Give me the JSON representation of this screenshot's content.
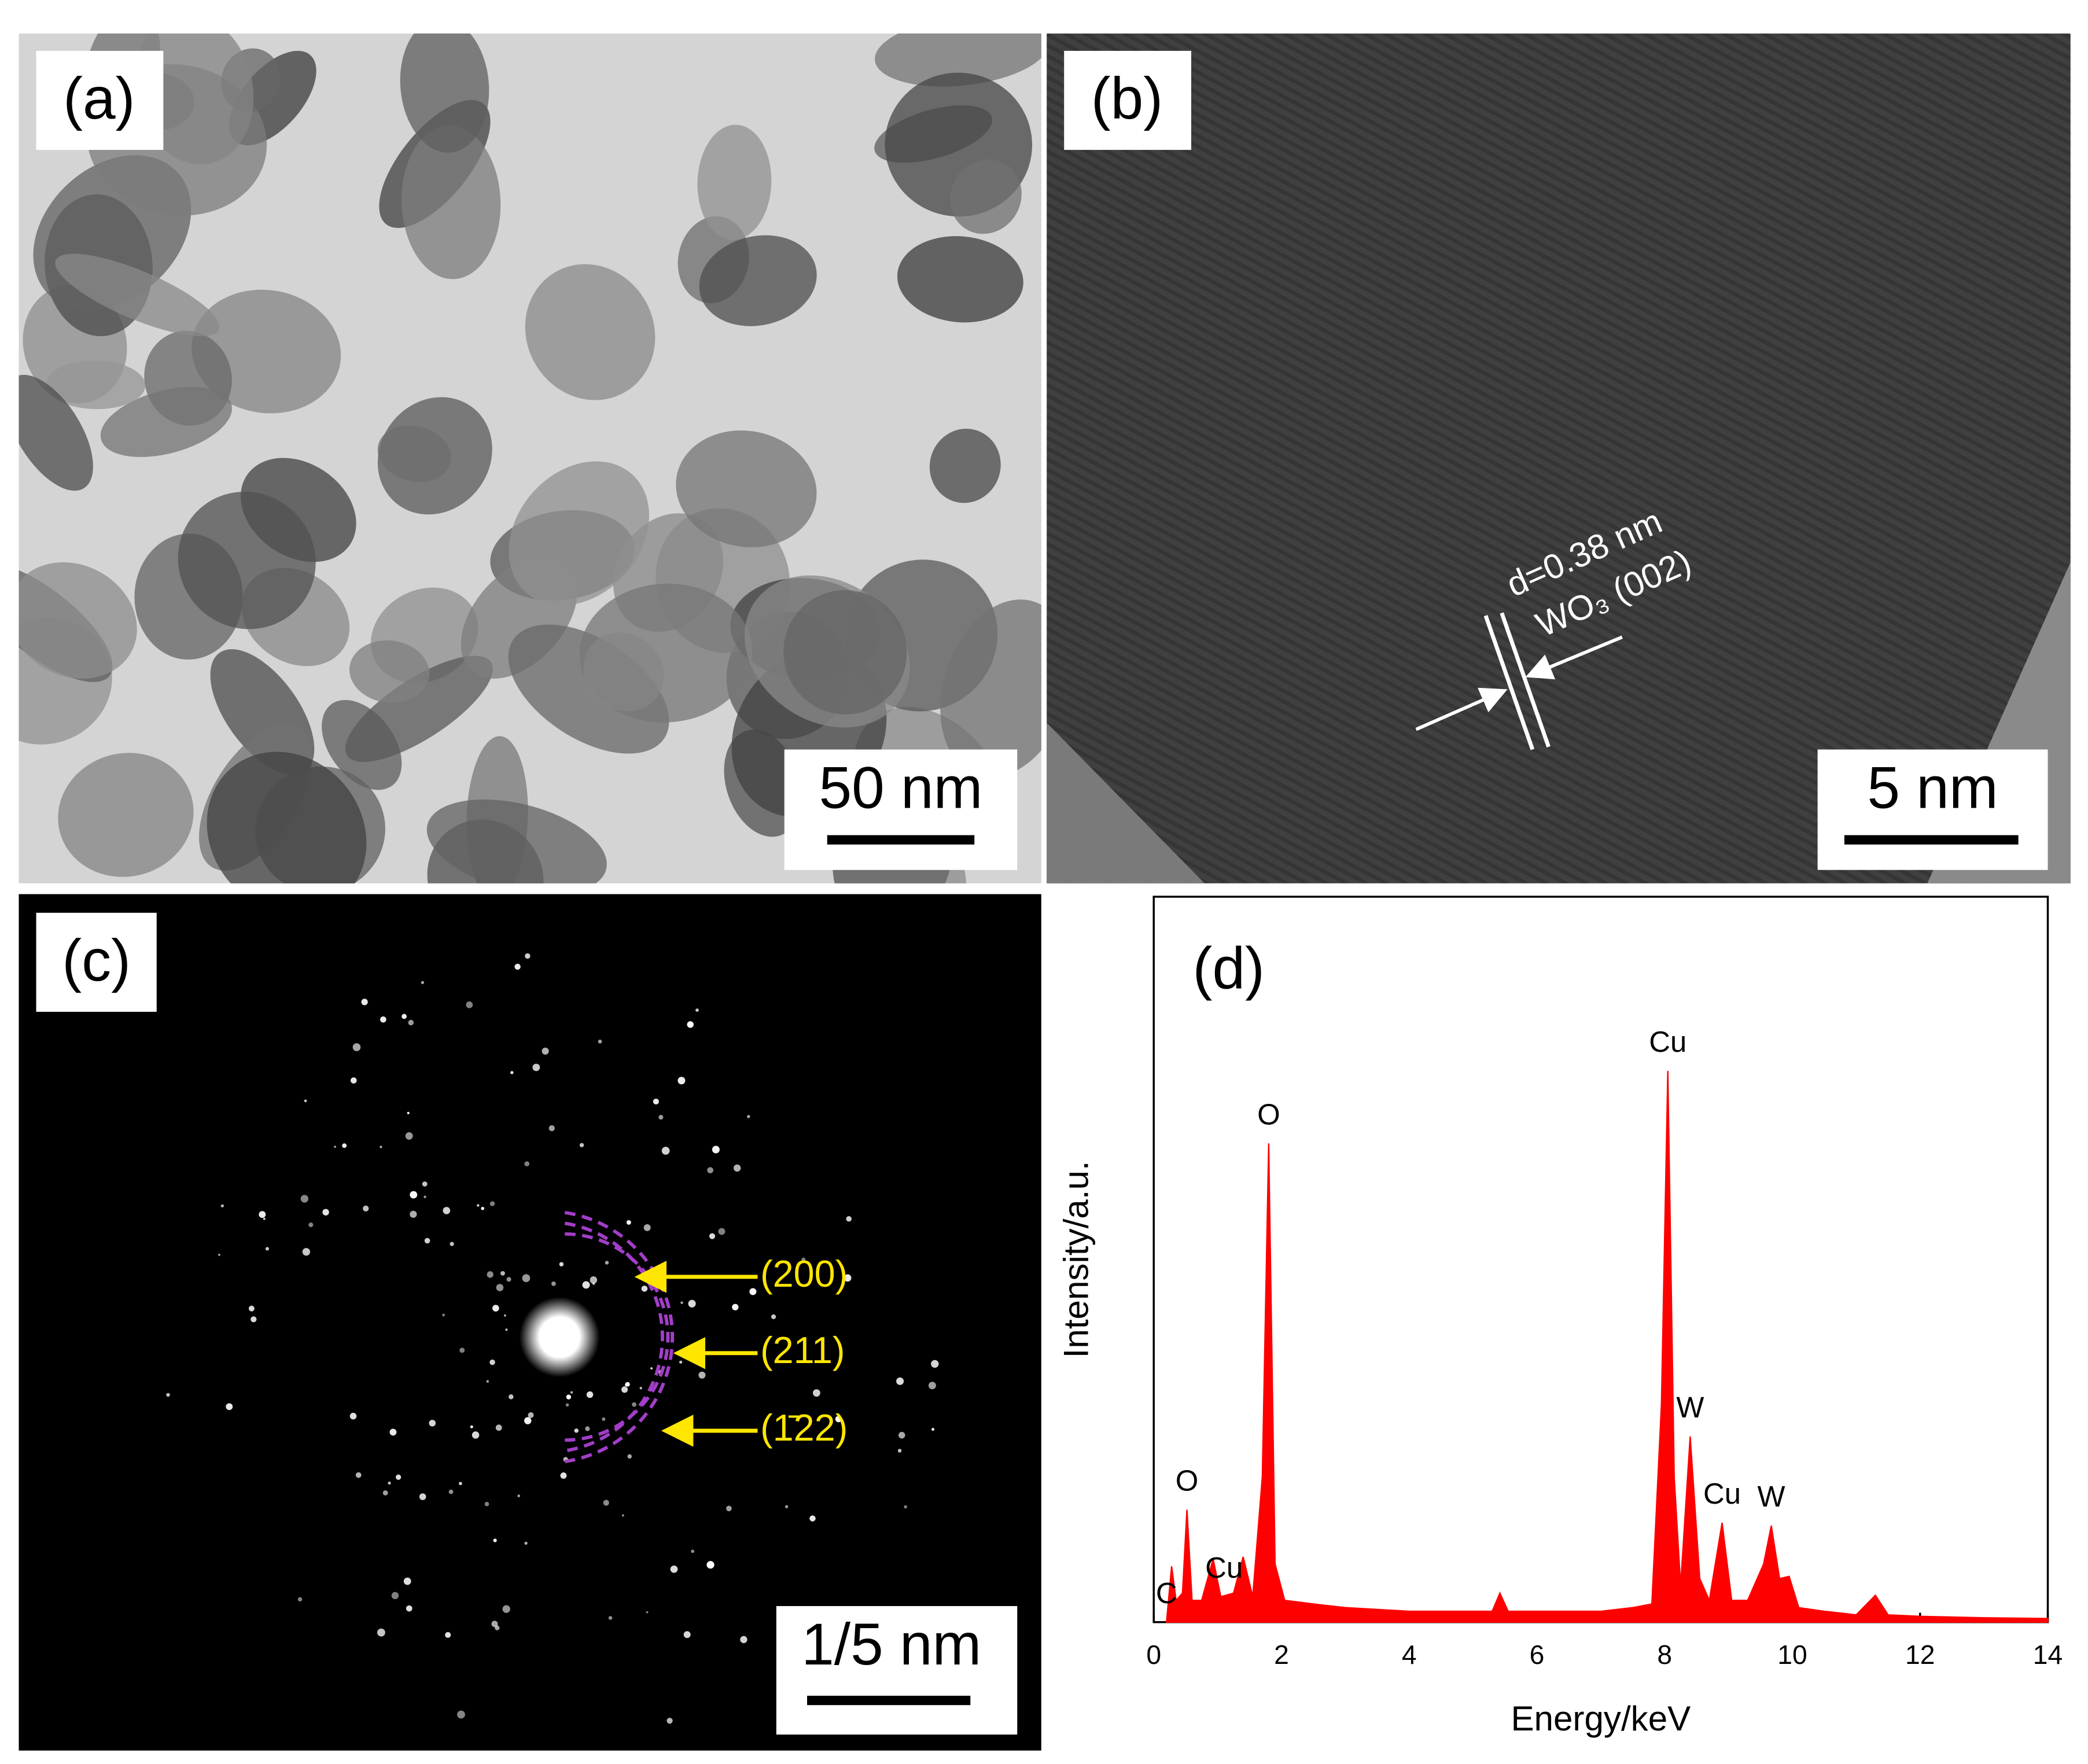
{
  "panels": {
    "a": {
      "label": "(a)",
      "scale_bar": "50 nm"
    },
    "b": {
      "label": "(b)",
      "scale_bar": "5 nm",
      "spacing": "d=0.38 nm",
      "plane": "WO₃ (002)"
    },
    "c": {
      "label": "(c)",
      "scale_bar": "1/5 nm",
      "rings": [
        "(200)",
        "(211)",
        "(1̄22)"
      ]
    }
  },
  "chart_data": {
    "type": "area",
    "panel_label": "(d)",
    "x_label": "Energy/keV",
    "y_label": "Intensity/a.u.",
    "color": "#ff0000",
    "x": [
      0.2,
      0.28,
      0.35,
      0.45,
      0.52,
      0.6,
      0.75,
      0.93,
      1.05,
      1.25,
      1.4,
      1.55,
      1.7,
      1.8,
      1.9,
      2.05,
      2.5,
      3,
      4,
      5,
      5.3,
      5.42,
      5.55,
      6,
      7,
      7.5,
      7.8,
      7.95,
      8.05,
      8.15,
      8.25,
      8.4,
      8.55,
      8.7,
      8.9,
      9.05,
      9.3,
      9.55,
      9.67,
      9.8,
      9.95,
      10.1,
      10.5,
      11,
      11.3,
      11.5,
      12,
      13,
      14
    ],
    "values": [
      0,
      7.7,
      3,
      4,
      15.5,
      3,
      3,
      8.7,
      3.5,
      4,
      9,
      3.5,
      20,
      66,
      8,
      3,
      2.5,
      2,
      1.5,
      1.5,
      1.5,
      4,
      1.5,
      1.5,
      1.5,
      2,
      2.5,
      30,
      76,
      20,
      5,
      25.6,
      6,
      3,
      13.7,
      3,
      3,
      8,
      13.3,
      6,
      6.3,
      2,
      1.5,
      1,
      3.7,
      1,
      0.8,
      0.6,
      0.5
    ],
    "xlim": [
      0,
      14
    ],
    "xticks": [
      0,
      2,
      4,
      6,
      8,
      10,
      12,
      14
    ],
    "ylim": [
      0,
      100
    ],
    "peak_labels": [
      {
        "label": "C",
        "x": 0.2
      },
      {
        "label": "O",
        "x": 0.52
      },
      {
        "label": "Cu",
        "x": 1.1
      },
      {
        "label": "O",
        "x": 1.8
      },
      {
        "label": "Cu",
        "x": 8.05
      },
      {
        "label": "W",
        "x": 8.4
      },
      {
        "label": "Cu",
        "x": 8.9
      },
      {
        "label": "W",
        "x": 9.67
      }
    ]
  }
}
